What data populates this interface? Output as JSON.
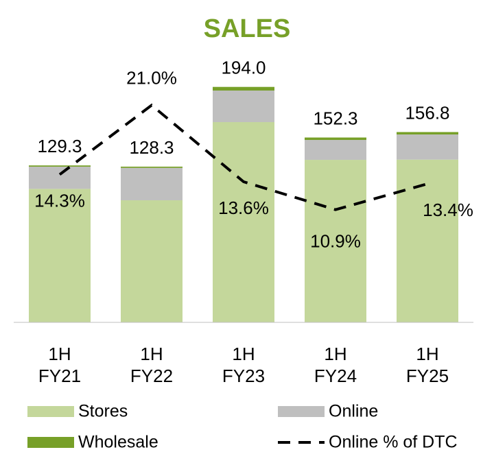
{
  "chart_data": {
    "type": "bar",
    "title": "SALES",
    "categories": [
      "1H\nFY21",
      "1H\nFY22",
      "1H\nFY23",
      "1H\nFY24",
      "1H\nFY25"
    ],
    "stacked": true,
    "ylim": [
      0,
      230
    ],
    "y2lim": [
      0,
      27
    ],
    "totals": [
      129.3,
      128.3,
      194.0,
      152.3,
      156.8
    ],
    "total_labels": [
      "129.3",
      "128.3",
      "194.0",
      "152.3",
      "156.8"
    ],
    "series": [
      {
        "name": "Stores",
        "color": "#c4d79b",
        "values": [
          110.0,
          100.6,
          165.0,
          133.9,
          134.1
        ]
      },
      {
        "name": "Online",
        "color": "#bfbfbf",
        "values": [
          18.3,
          26.7,
          26.0,
          16.4,
          20.7
        ]
      },
      {
        "name": "Wholesale",
        "color": "#77a028",
        "values": [
          1.0,
          1.0,
          3.0,
          2.0,
          2.0
        ]
      },
      {
        "name": "Online % of DTC",
        "type": "line",
        "axis": "y2",
        "color": "#000000",
        "dashed": true,
        "values": [
          14.3,
          21.0,
          13.6,
          10.9,
          13.4
        ],
        "value_labels": [
          "14.3%",
          "21.0%",
          "13.6%",
          "10.9%",
          "13.4%"
        ]
      }
    ]
  }
}
